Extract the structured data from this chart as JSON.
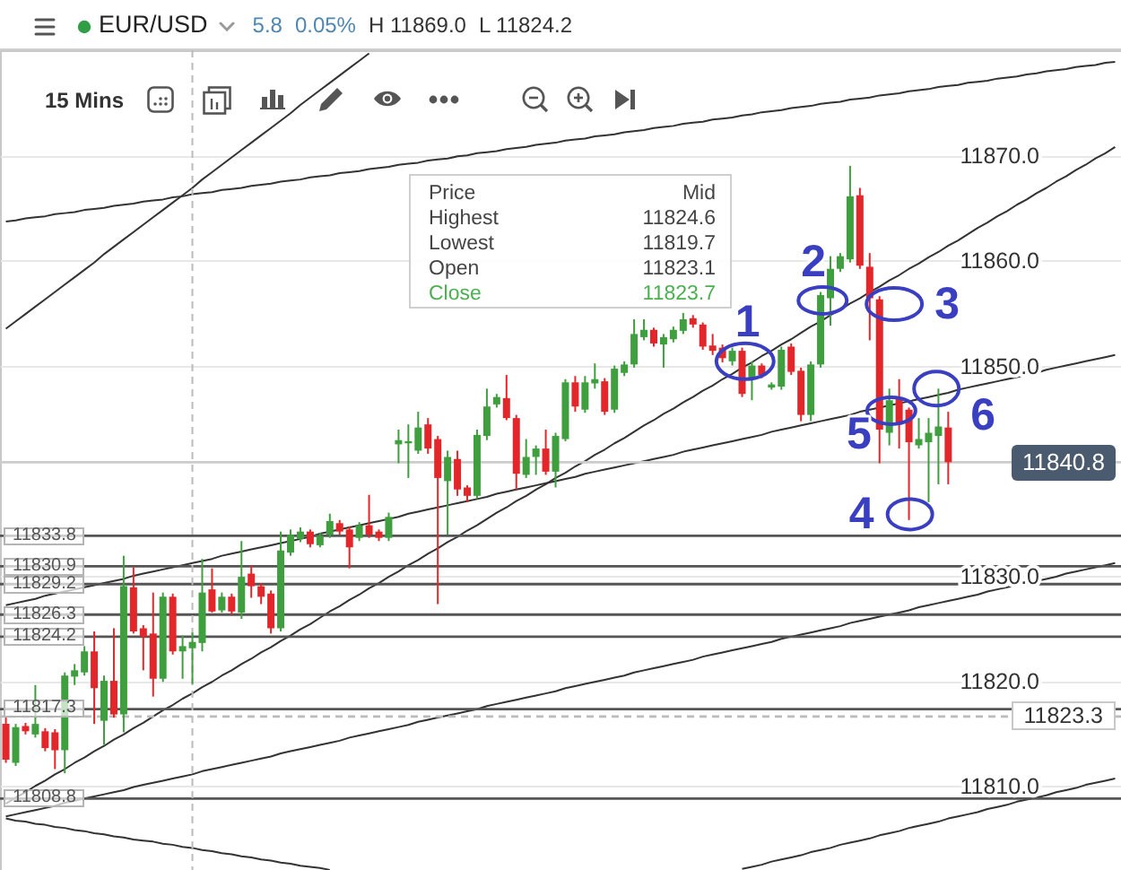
{
  "chart_data": {
    "type": "candlestick",
    "title": "EUR/USD",
    "categories": [
      null,
      null,
      null,
      null,
      null,
      null,
      null,
      null,
      null,
      null,
      null,
      null,
      null,
      null,
      null,
      null,
      null,
      null,
      null,
      null,
      null,
      null,
      null,
      null,
      null,
      null,
      null,
      null,
      null,
      null,
      null,
      null,
      null,
      null,
      null,
      null,
      null,
      null,
      null,
      null,
      null,
      null,
      null,
      null,
      null,
      null,
      null,
      null,
      null,
      null,
      null,
      null,
      null,
      null,
      null,
      null,
      null,
      null,
      null,
      null,
      null,
      null,
      null,
      null,
      null,
      null,
      null,
      null,
      null,
      null,
      null,
      null,
      null,
      null,
      null,
      null,
      null,
      null,
      null,
      null,
      null,
      null,
      null,
      null,
      null,
      null,
      null,
      null,
      null,
      null,
      null,
      null,
      null,
      null,
      null,
      null,
      null,
      null,
      null,
      null,
      null,
      null,
      null,
      null,
      null,
      null,
      null,
      null,
      null,
      null,
      null,
      null,
      null,
      null
    ],
    "ohlc": [
      [
        11815.9,
        11816.5,
        11812.2,
        11812.5
      ],
      [
        11812.2,
        11815.9,
        11811.9,
        11815.6
      ],
      [
        11815.7,
        11816.0,
        11814.9,
        11815.2
      ],
      [
        11814.9,
        11819.6,
        11814.6,
        11815.9
      ],
      [
        11815.2,
        11815.5,
        11813.3,
        11813.6
      ],
      [
        11815.1,
        11815.4,
        11811.6,
        11813.4
      ],
      [
        11813.4,
        11820.8,
        11811.2,
        11820.5
      ],
      [
        11820.4,
        11821.6,
        11819.6,
        11821.0
      ],
      [
        11820.8,
        11823.3,
        11820.5,
        11822.8
      ],
      [
        11822.8,
        11824.7,
        11815.9,
        11819.3
      ],
      [
        11816.2,
        11820.5,
        11813.9,
        11820.0
      ],
      [
        11820.0,
        11825.0,
        11816.5,
        11816.8
      ],
      [
        11816.8,
        11831.9,
        11815.1,
        11829.0
      ],
      [
        11828.9,
        11830.8,
        11824.5,
        11824.7
      ],
      [
        11825.0,
        11825.3,
        11821.0,
        11824.2
      ],
      [
        11824.5,
        11828.4,
        11818.5,
        11820.2
      ],
      [
        11820.2,
        11828.4,
        11819.9,
        11828.0
      ],
      [
        11828.0,
        11828.3,
        11822.5,
        11822.8
      ],
      [
        11822.8,
        11824.3,
        11820.2,
        11823.3
      ],
      [
        11823.1,
        11824.6,
        11819.7,
        11823.7
      ],
      [
        11823.6,
        11831.6,
        11822.8,
        11828.4
      ],
      [
        11828.7,
        11830.7,
        11826.5,
        11826.6
      ],
      [
        11826.7,
        11828.4,
        11826.5,
        11828.0
      ],
      [
        11828.0,
        11828.3,
        11826.3,
        11826.6
      ],
      [
        11826.5,
        11833.3,
        11825.9,
        11829.9
      ],
      [
        11830.2,
        11831.0,
        11827.9,
        11829.0
      ],
      [
        11829.0,
        11829.3,
        11827.3,
        11828.0
      ],
      [
        11828.3,
        11828.6,
        11824.5,
        11825.0
      ],
      [
        11825.0,
        11834.2,
        11824.7,
        11832.4
      ],
      [
        11832.2,
        11834.4,
        11831.9,
        11833.9
      ],
      [
        11833.5,
        11834.6,
        11833.2,
        11834.2
      ],
      [
        11834.2,
        11834.4,
        11832.7,
        11833.0
      ],
      [
        11832.9,
        11834.1,
        11832.7,
        11833.8
      ],
      [
        11833.9,
        11835.9,
        11833.6,
        11835.2
      ],
      [
        11835.0,
        11835.3,
        11833.9,
        11834.2
      ],
      [
        11834.4,
        11834.7,
        11830.7,
        11832.7
      ],
      [
        11833.6,
        11835.1,
        11833.3,
        11834.8
      ],
      [
        11834.8,
        11837.7,
        11833.6,
        11833.9
      ],
      [
        11834.2,
        11834.4,
        11833.3,
        11833.6
      ],
      [
        11833.6,
        11836.0,
        11833.3,
        11835.6
      ],
      [
        11842.5,
        11843.9,
        11840.7,
        11842.9
      ],
      [
        11842.6,
        11844.4,
        11839.3,
        11842.8
      ],
      [
        11841.9,
        11845.6,
        11841.6,
        11844.1
      ],
      [
        11844.4,
        11845.0,
        11841.6,
        11842.1
      ],
      [
        11843.0,
        11843.3,
        11827.3,
        11839.3
      ],
      [
        11839.0,
        11841.9,
        11833.9,
        11841.3
      ],
      [
        11841.1,
        11841.9,
        11837.6,
        11838.2
      ],
      [
        11838.4,
        11838.6,
        11837.0,
        11837.6
      ],
      [
        11837.6,
        11843.9,
        11837.3,
        11843.4
      ],
      [
        11843.3,
        11847.8,
        11842.9,
        11846.1
      ],
      [
        11846.3,
        11847.3,
        11846.0,
        11847.0
      ],
      [
        11846.9,
        11849.1,
        11844.8,
        11845.0
      ],
      [
        11845.0,
        11845.3,
        11838.2,
        11839.7
      ],
      [
        11839.6,
        11843.0,
        11839.3,
        11841.3
      ],
      [
        11841.3,
        11842.4,
        11839.6,
        11842.1
      ],
      [
        11842.1,
        11843.9,
        11839.6,
        11839.9
      ],
      [
        11839.9,
        11843.6,
        11838.4,
        11843.3
      ],
      [
        11843.0,
        11848.7,
        11842.8,
        11848.4
      ],
      [
        11848.4,
        11849.0,
        11845.6,
        11846.1
      ],
      [
        11845.8,
        11849.0,
        11845.5,
        11848.4
      ],
      [
        11848.3,
        11850.2,
        11847.8,
        11848.7
      ],
      [
        11848.5,
        11848.8,
        11845.3,
        11845.6
      ],
      [
        11845.8,
        11850.0,
        11845.5,
        11849.7
      ],
      [
        11849.3,
        11850.4,
        11849.0,
        11850.1
      ],
      [
        11850.1,
        11854.4,
        11849.8,
        11853.0
      ],
      [
        11852.7,
        11854.4,
        11852.4,
        11853.4
      ],
      [
        11853.4,
        11853.6,
        11851.8,
        11852.1
      ],
      [
        11852.0,
        11853.0,
        11849.8,
        11852.7
      ],
      [
        11852.5,
        11853.7,
        11852.2,
        11853.4
      ],
      [
        11853.3,
        11855.0,
        11853.0,
        11854.4
      ],
      [
        11854.5,
        11854.8,
        11853.6,
        11853.9
      ],
      [
        11853.9,
        11854.1,
        11851.5,
        11851.8
      ],
      [
        11851.9,
        11853.0,
        11851.0,
        11851.4
      ],
      [
        11851.7,
        11852.0,
        11850.3,
        11850.7
      ],
      [
        11850.4,
        11851.7,
        11850.0,
        11851.4
      ],
      [
        11851.4,
        11851.7,
        11847.0,
        11847.3
      ],
      [
        11848.7,
        11850.4,
        11846.7,
        11850.0
      ],
      [
        11850.0,
        11850.2,
        11848.8,
        11849.1
      ],
      [
        11847.9,
        11848.4,
        11847.7,
        11848.2
      ],
      [
        11848.0,
        11851.8,
        11847.7,
        11851.5
      ],
      [
        11851.8,
        11852.1,
        11849.1,
        11849.4
      ],
      [
        11849.5,
        11849.8,
        11844.7,
        11845.3
      ],
      [
        11845.3,
        11850.4,
        11844.7,
        11850.1
      ],
      [
        11850.1,
        11857.0,
        11849.8,
        11856.7
      ],
      [
        11856.4,
        11860.4,
        11853.8,
        11859.2
      ],
      [
        11859.2,
        11860.7,
        11858.9,
        11860.4
      ],
      [
        11860.1,
        11869.0,
        11859.8,
        11866.1
      ],
      [
        11866.2,
        11866.9,
        11859.2,
        11859.5
      ],
      [
        11859.4,
        11860.7,
        11852.4,
        11856.4
      ],
      [
        11856.3,
        11856.6,
        11840.7,
        11843.9
      ],
      [
        11843.6,
        11847.8,
        11842.4,
        11846.7
      ],
      [
        11847.0,
        11848.7,
        11842.1,
        11844.4
      ],
      [
        11845.8,
        11846.0,
        11835.3,
        11842.7
      ],
      [
        11842.4,
        11845.0,
        11842.1,
        11843.0
      ],
      [
        11842.7,
        11845.0,
        11837.0,
        11843.6
      ],
      [
        11843.3,
        11847.8,
        11838.7,
        11844.2
      ],
      [
        11844.1,
        11845.6,
        11838.7,
        11840.8
      ],
      null,
      null,
      null,
      null,
      null,
      null,
      null,
      null,
      null,
      null,
      null,
      null,
      null,
      null,
      null,
      null,
      null
    ],
    "colors": [
      "#e3262a",
      "#3f9f3f",
      "#e3262a",
      "#3f9f3f",
      "#e3262a",
      "#e3262a",
      "#3f9f3f",
      "#3f9f3f",
      "#3f9f3f",
      "#e3262a",
      "#3f9f3f",
      "#e3262a",
      "#3f9f3f",
      "#e3262a",
      "#e3262a",
      "#e3262a",
      "#3f9f3f",
      "#e3262a",
      "#3f9f3f",
      "#3f9f3f",
      "#3f9f3f",
      "#e3262a",
      "#3f9f3f",
      "#e3262a",
      "#3f9f3f",
      "#e3262a",
      "#e3262a",
      "#e3262a",
      "#3f9f3f",
      "#3f9f3f",
      "#3f9f3f",
      "#e3262a",
      "#3f9f3f",
      "#3f9f3f",
      "#e3262a",
      "#e3262a",
      "#3f9f3f",
      "#e3262a",
      "#e3262a",
      "#3f9f3f",
      "#3f9f3f",
      "#3f9f3f",
      "#3f9f3f",
      "#e3262a",
      "#e3262a",
      "#3f9f3f",
      "#e3262a",
      "#e3262a",
      "#3f9f3f",
      "#3f9f3f",
      "#3f9f3f",
      "#e3262a",
      "#e3262a",
      "#3f9f3f",
      "#3f9f3f",
      "#e3262a",
      "#3f9f3f",
      "#3f9f3f",
      "#e3262a",
      "#3f9f3f",
      "#3f9f3f",
      "#e3262a",
      "#3f9f3f",
      "#3f9f3f",
      "#3f9f3f",
      "#3f9f3f",
      "#e3262a",
      "#3f9f3f",
      "#3f9f3f",
      "#3f9f3f",
      "#e3262a",
      "#e3262a",
      "#e3262a",
      "#e3262a",
      "#3f9f3f",
      "#e3262a",
      "#3f9f3f",
      "#e3262a",
      "#3f9f3f",
      "#3f9f3f",
      "#e3262a",
      "#e3262a",
      "#3f9f3f",
      "#3f9f3f",
      "#3f9f3f",
      "#3f9f3f",
      "#3f9f3f",
      "#e3262a",
      "#e3262a",
      "#e3262a",
      "#3f9f3f",
      "#e3262a",
      "#e3262a",
      "#3f9f3f",
      "#3f9f3f",
      "#3f9f3f",
      "#e3262a",
      null,
      null,
      null,
      null,
      null,
      null,
      null,
      null,
      null,
      null,
      null,
      null,
      null,
      null,
      null,
      null,
      null
    ],
    "series": [
      {
        "type": "line",
        "color": "#333333",
        "values": [
          11853.5,
          11854.2,
          11854.9,
          11855.6,
          11856.3,
          11857.0,
          11857.7,
          11858.4,
          11859.1,
          11859.8,
          11860.6,
          11861.3,
          11862.0,
          11862.7,
          11863.4,
          11864.1,
          11864.8,
          11865.5,
          11866.2,
          11866.9,
          11867.7,
          11868.4,
          11869.1,
          11869.8,
          11870.5,
          11871.2,
          11871.9,
          11872.6,
          11873.3,
          11874.0,
          11874.8,
          11875.5,
          11876.2,
          11876.9,
          11877.6,
          11878.3,
          11879.0,
          11879.7,
          null,
          null,
          null,
          null,
          null,
          null,
          null,
          null,
          null,
          null,
          null,
          null,
          null,
          null,
          null,
          null,
          null,
          null,
          null,
          null,
          null,
          null,
          null,
          null,
          null,
          null,
          null,
          null,
          null,
          null,
          null,
          null,
          null,
          null,
          null,
          null,
          null,
          null,
          null,
          null,
          null,
          null,
          null,
          null,
          null,
          null,
          null,
          null,
          null,
          null,
          null,
          null,
          null,
          null,
          null,
          null,
          null,
          null,
          null,
          null,
          null,
          null,
          null,
          null,
          null,
          null,
          null,
          null,
          null,
          null,
          null,
          null,
          null,
          null,
          null,
          null
        ]
      },
      {
        "type": "line",
        "color": "#333333",
        "values": [
          11863.7,
          11863.8,
          11864.0,
          11864.1,
          11864.2,
          11864.4,
          11864.5,
          11864.6,
          11864.8,
          11864.9,
          11865.0,
          11865.2,
          11865.3,
          11865.4,
          11865.6,
          11865.7,
          11865.8,
          11866.0,
          11866.1,
          11866.3,
          11866.4,
          11866.5,
          11866.7,
          11866.8,
          11866.9,
          11867.1,
          11867.2,
          11867.3,
          11867.5,
          11867.6,
          11867.7,
          11867.9,
          11868.0,
          11868.1,
          11868.3,
          11868.4,
          11868.5,
          11868.7,
          11868.8,
          11868.9,
          11869.1,
          11869.2,
          11869.3,
          11869.5,
          11869.6,
          11869.7,
          11869.9,
          11870.0,
          11870.2,
          11870.3,
          11870.4,
          11870.6,
          11870.7,
          11870.8,
          11871.0,
          11871.1,
          11871.2,
          11871.4,
          11871.5,
          11871.6,
          11871.8,
          11871.9,
          11872.0,
          11872.2,
          11872.3,
          11872.4,
          11872.6,
          11872.7,
          11872.8,
          11873.0,
          11873.1,
          11873.2,
          11873.4,
          11873.5,
          11873.6,
          11873.8,
          11873.9,
          11874.1,
          11874.2,
          11874.3,
          11874.5,
          11874.6,
          11874.7,
          11874.9,
          11875.0,
          11875.1,
          11875.3,
          11875.4,
          11875.5,
          11875.7,
          11875.8,
          11875.9,
          11876.1,
          11876.2,
          11876.3,
          11876.5,
          11876.6,
          11876.7,
          11876.9,
          11877.0,
          11877.1,
          11877.3,
          11877.4,
          11877.5,
          11877.7,
          11877.8,
          11878.0,
          11878.1,
          11878.2,
          11878.4,
          11878.5,
          11878.6,
          11878.8,
          11878.9
        ]
      },
      {
        "type": "line",
        "color": "#333333",
        "values": [
          11808.3,
          11808.9,
          11809.4,
          11810.0,
          11810.5,
          11811.1,
          11811.6,
          11812.2,
          11812.7,
          11813.3,
          11813.8,
          11814.4,
          11814.9,
          11815.5,
          11816.0,
          11816.6,
          11817.2,
          11817.7,
          11818.3,
          11818.8,
          11819.4,
          11819.9,
          11820.5,
          11821.0,
          11821.6,
          11822.1,
          11822.7,
          11823.2,
          11823.8,
          11824.3,
          11824.9,
          11825.4,
          11826.0,
          11826.6,
          11827.1,
          11827.7,
          11828.2,
          11828.8,
          11829.3,
          11829.9,
          11830.4,
          11831.0,
          11831.5,
          11832.1,
          11832.6,
          11833.2,
          11833.7,
          11834.3,
          11834.8,
          11835.4,
          11836.0,
          11836.5,
          11837.1,
          11837.6,
          11838.2,
          11838.7,
          11839.3,
          11839.8,
          11840.4,
          11840.9,
          11841.5,
          11842.0,
          11842.6,
          11843.1,
          11843.7,
          11844.3,
          11844.8,
          11845.4,
          11845.9,
          11846.5,
          11847.0,
          11847.6,
          11848.1,
          11848.7,
          11849.2,
          11849.8,
          11850.3,
          11850.9,
          11851.4,
          11852.0,
          11852.5,
          11853.1,
          11853.7,
          11854.2,
          11854.8,
          11855.3,
          11855.9,
          11856.4,
          11857.0,
          11857.5,
          11858.1,
          11858.6,
          11859.2,
          11859.7,
          11860.3,
          11860.8,
          11861.4,
          11861.9,
          11862.5,
          11863.1,
          11863.6,
          11864.2,
          11864.7,
          11865.3,
          11865.8,
          11866.4,
          11866.9,
          11867.5,
          11868.0,
          11868.6,
          11869.1,
          11869.7,
          11870.2,
          11870.8
        ]
      },
      {
        "type": "line",
        "color": "#333333",
        "values": [
          11827.2,
          11827.4,
          11827.6,
          11827.8,
          11828.1,
          11828.3,
          11828.5,
          11828.7,
          11828.9,
          11829.1,
          11829.3,
          11829.5,
          11829.7,
          11830.0,
          11830.2,
          11830.4,
          11830.6,
          11830.8,
          11831.0,
          11831.2,
          11831.4,
          11831.6,
          11831.9,
          11832.1,
          11832.3,
          11832.5,
          11832.7,
          11832.9,
          11833.1,
          11833.3,
          11833.5,
          11833.7,
          11834.0,
          11834.2,
          11834.4,
          11834.6,
          11834.8,
          11835.0,
          11835.2,
          11835.4,
          11835.6,
          11835.9,
          11836.1,
          11836.3,
          11836.5,
          11836.7,
          11836.9,
          11837.1,
          11837.3,
          11837.5,
          11837.8,
          11838.0,
          11838.2,
          11838.4,
          11838.6,
          11838.8,
          11839.0,
          11839.2,
          11839.4,
          11839.7,
          11839.9,
          11840.1,
          11840.3,
          11840.5,
          11840.7,
          11840.9,
          11841.1,
          11841.3,
          11841.5,
          11841.8,
          11842.0,
          11842.2,
          11842.4,
          11842.6,
          11842.8,
          11843.0,
          11843.2,
          11843.4,
          11843.7,
          11843.9,
          11844.1,
          11844.3,
          11844.5,
          11844.7,
          11844.9,
          11845.1,
          11845.3,
          11845.6,
          11845.8,
          11846.0,
          11846.2,
          11846.4,
          11846.6,
          11846.8,
          11847.0,
          11847.2,
          11847.4,
          11847.7,
          11847.9,
          11848.1,
          11848.3,
          11848.5,
          11848.7,
          11848.9,
          11849.1,
          11849.3,
          11849.6,
          11849.8,
          11850.0,
          11850.2,
          11850.4,
          11850.6,
          11850.8,
          11851.0
        ]
      },
      {
        "type": "line",
        "color": "#333333",
        "values": [
          11807.1,
          11807.3,
          11807.5,
          11807.7,
          11807.9,
          11808.1,
          11808.4,
          11808.6,
          11808.8,
          11809.0,
          11809.2,
          11809.4,
          11809.6,
          11809.9,
          11810.1,
          11810.3,
          11810.5,
          11810.7,
          11810.9,
          11811.1,
          11811.4,
          11811.6,
          11811.8,
          11812.0,
          11812.2,
          11812.4,
          11812.6,
          11812.8,
          11813.1,
          11813.3,
          11813.5,
          11813.7,
          11813.9,
          11814.1,
          11814.3,
          11814.6,
          11814.8,
          11815.0,
          11815.2,
          11815.4,
          11815.6,
          11815.8,
          11816.1,
          11816.3,
          11816.5,
          11816.7,
          11816.9,
          11817.1,
          11817.3,
          11817.6,
          11817.8,
          11818.0,
          11818.2,
          11818.4,
          11818.6,
          11818.8,
          11819.0,
          11819.3,
          11819.5,
          11819.7,
          11819.9,
          11820.1,
          11820.3,
          11820.5,
          11820.8,
          11821.0,
          11821.2,
          11821.4,
          11821.6,
          11821.8,
          11822.0,
          11822.3,
          11822.5,
          11822.7,
          11822.9,
          11823.1,
          11823.3,
          11823.5,
          11823.7,
          11824.0,
          11824.2,
          11824.4,
          11824.6,
          11824.8,
          11825.0,
          11825.2,
          11825.5,
          11825.7,
          11825.9,
          11826.1,
          11826.3,
          11826.5,
          11826.7,
          11827.0,
          11827.2,
          11827.4,
          11827.6,
          11827.8,
          11828.0,
          11828.2,
          11828.5,
          11828.7,
          11828.9,
          11829.1,
          11829.3,
          11829.5,
          11829.7,
          11829.9,
          11830.2,
          11830.4,
          11830.6,
          11830.8,
          11831.0,
          11831.2
        ]
      },
      {
        "type": "line",
        "color": "#333333",
        "values": [
          11806.9,
          11806.7,
          11806.6,
          11806.4,
          11806.3,
          11806.1,
          11806.0,
          11805.8,
          11805.7,
          11805.5,
          11805.4,
          11805.2,
          11805.1,
          11804.9,
          11804.8,
          11804.7,
          11804.5,
          11804.4,
          11804.2,
          11804.1,
          11803.9,
          11803.8,
          11803.6,
          11803.5,
          11803.3,
          11803.2,
          11803.0,
          11802.9,
          11802.7,
          11802.6,
          11802.4,
          11802.3,
          11802.2,
          11802.0,
          null,
          null,
          null,
          null,
          null,
          null,
          null,
          null,
          null,
          null,
          null,
          null,
          null,
          null,
          null,
          null,
          null,
          null,
          null,
          null,
          null,
          null,
          null,
          null,
          null,
          null,
          null,
          null,
          null,
          null,
          null,
          null,
          null,
          null,
          null,
          null,
          null,
          null,
          null,
          null,
          null,
          null,
          null,
          null,
          null,
          null,
          null,
          null,
          null,
          null,
          null,
          null,
          null,
          null,
          null,
          null,
          null,
          null,
          null,
          null,
          null,
          null,
          null,
          null,
          null,
          null,
          null,
          null,
          null,
          null,
          null,
          null,
          null,
          null,
          null,
          null,
          null,
          null,
          null,
          null
        ]
      },
      {
        "type": "line",
        "color": "#333333",
        "values": [
          null,
          null,
          null,
          null,
          null,
          null,
          null,
          null,
          null,
          null,
          null,
          null,
          null,
          null,
          null,
          null,
          null,
          null,
          null,
          null,
          null,
          null,
          null,
          null,
          null,
          null,
          null,
          null,
          null,
          null,
          null,
          null,
          null,
          null,
          null,
          null,
          null,
          null,
          null,
          null,
          null,
          null,
          null,
          null,
          null,
          null,
          null,
          null,
          null,
          null,
          null,
          null,
          null,
          null,
          null,
          null,
          null,
          null,
          null,
          null,
          null,
          null,
          null,
          null,
          null,
          null,
          null,
          null,
          null,
          null,
          null,
          null,
          null,
          null,
          null,
          11802.1,
          11802.3,
          11802.5,
          11802.8,
          11803.0,
          11803.2,
          11803.4,
          11803.7,
          11803.9,
          11804.1,
          11804.4,
          11804.6,
          11804.8,
          11805.0,
          11805.3,
          11805.5,
          11805.7,
          11806.0,
          11806.2,
          11806.4,
          11806.6,
          11806.9,
          11807.1,
          11807.3,
          11807.5,
          11807.8,
          11808.0,
          11808.2,
          11808.5,
          11808.7,
          11808.9,
          11809.1,
          11809.4,
          11809.6,
          11809.8,
          11810.1,
          11810.3,
          11810.5,
          11810.7
        ]
      }
    ],
    "ylim": [
      11802,
      11880
    ],
    "yticks": [
      {
        "value": 11810,
        "label": "11810.0"
      },
      {
        "value": 11820,
        "label": "11820.0"
      },
      {
        "value": 11830,
        "label": "11830.0"
      },
      {
        "value": 11850,
        "label": "11850.0"
      },
      {
        "value": 11860,
        "label": "11860.0"
      },
      {
        "value": 11870,
        "label": "11870.0"
      }
    ],
    "tick_labels": "y",
    "grid": "y",
    "ref_lines": [
      {
        "axis": "y",
        "value": 11833.8,
        "label": "11833.8",
        "color": "#555555"
      },
      {
        "axis": "y",
        "value": 11830.9,
        "label": "11830.9",
        "color": "#555555"
      },
      {
        "axis": "y",
        "value": 11829.2,
        "label": "11829.2",
        "color": "#555555"
      },
      {
        "axis": "y",
        "value": 11826.3,
        "label": "11826.3",
        "color": "#555555"
      },
      {
        "axis": "y",
        "value": 11824.2,
        "label": "11824.2",
        "color": "#555555"
      },
      {
        "axis": "y",
        "value": 11817.3,
        "label": "11817.3",
        "color": "#555555"
      },
      {
        "axis": "y",
        "value": 11808.8,
        "label": "11808.8",
        "color": "#555555"
      },
      {
        "axis": "y",
        "value": 11840.8,
        "label": "11840.8",
        "color": "#cccccc"
      },
      {
        "axis": "y",
        "value": 11816.6,
        "color": "#bbbbbb",
        "line_style": "dashed"
      }
    ],
    "annotations": [
      "5.8",
      "0.05%",
      "H 11869.0",
      "L 11824.2",
      "15 Mins",
      "11823.3",
      "Price",
      "Mid",
      "Highest",
      "11824.6",
      "Lowest",
      "11819.7",
      "Open",
      "11823.1",
      "Close",
      "11823.7",
      {
        "text": "1",
        "y": 11850.4
      },
      {
        "text": "2",
        "y": 11856.2
      },
      "3",
      "4",
      {
        "text": "5",
        "y": 11845.7
      },
      {
        "text": "6",
        "y": 11847.8
      }
    ]
  }
}
